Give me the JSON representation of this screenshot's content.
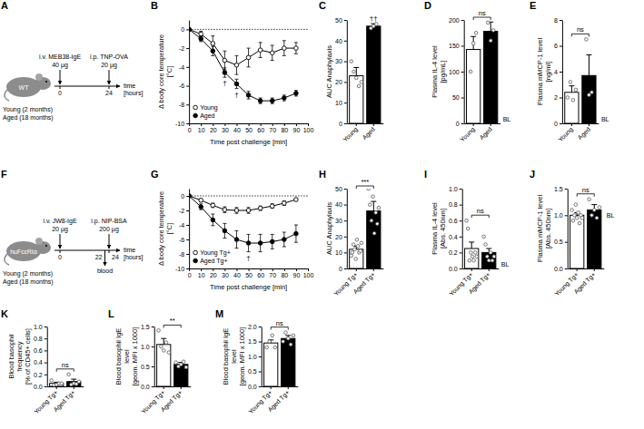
{
  "diagrams": [
    {
      "panel": "A",
      "mouse": "WT",
      "groups": [
        "Young (2 months)",
        "Aged (18 months)"
      ],
      "axis_label": "time [hours]",
      "events": [
        {
          "time": 0,
          "label": "i.v. MEB38-IgE",
          "dose": "40 µg",
          "position": "above"
        },
        {
          "time": 24,
          "label": "i.p. TNP-OVA",
          "dose": "20 µg",
          "position": "above"
        }
      ]
    },
    {
      "panel": "F",
      "mouse": "huFcεRIα",
      "groups": [
        "Young (2 months)",
        "Aged (18 months)"
      ],
      "axis_label": "time [hours]",
      "events": [
        {
          "time": 0,
          "label": "i.v. JW8-IgE",
          "dose": "20 µg",
          "position": "above"
        },
        {
          "time": 22,
          "label": "blood",
          "position": "below"
        },
        {
          "time": 24,
          "label": "i.p. NIP-BSA",
          "dose": "200 µg",
          "position": "above"
        }
      ]
    }
  ],
  "chart_data": [
    {
      "panel": "B",
      "type": "line",
      "x_label": "Time post challenge [min]",
      "y_label": "Δ body core temperature [°C]",
      "x": [
        0,
        10,
        20,
        30,
        40,
        50,
        60,
        70,
        80,
        90
      ],
      "xlim": [
        0,
        100
      ],
      "xticks": [
        0,
        10,
        20,
        30,
        40,
        50,
        60,
        70,
        80,
        90,
        100
      ],
      "ylim": [
        -10,
        1
      ],
      "yticks": [
        0,
        -2,
        -4,
        -6,
        -8,
        -10
      ],
      "baseline": 0,
      "legend": "bottom-left",
      "series": [
        {
          "name": "Young",
          "color": "#000000",
          "marker": "open-circle",
          "values": [
            0,
            -0.5,
            -1.5,
            -3.3,
            -3.8,
            -3.0,
            -2.2,
            -2.5,
            -2.0,
            -2.0
          ],
          "errors": [
            0,
            0.3,
            0.8,
            1.0,
            1.0,
            1.0,
            0.8,
            0.8,
            0.8,
            0.6
          ]
        },
        {
          "name": "Aged",
          "color": "#000000",
          "marker": "circle",
          "values": [
            0,
            -1.0,
            -2.3,
            -4.6,
            -5.8,
            -7.0,
            -7.6,
            -7.6,
            -7.3,
            -6.8
          ],
          "errors": [
            0,
            0.3,
            0.5,
            0.5,
            0.5,
            0.4,
            0.3,
            0.3,
            0.3,
            0.3
          ]
        }
      ],
      "annotations": [
        {
          "text": "†",
          "x": 30,
          "series": 1
        },
        {
          "text": "†",
          "x": 40,
          "series": 1
        }
      ]
    },
    {
      "panel": "C",
      "type": "bar",
      "y_label": "AUC Anaphylaxis",
      "categories": [
        "Young",
        "Aged"
      ],
      "values": [
        23,
        47
      ],
      "errors": [
        4,
        1.2
      ],
      "points": [
        [
          30,
          25,
          22,
          18,
          20
        ],
        [
          46,
          47,
          48
        ]
      ],
      "colors": [
        "#ffffff",
        "#000000"
      ],
      "ylim": [
        0,
        50
      ],
      "yticks": [
        0,
        10,
        20,
        30,
        40,
        50
      ],
      "annotations": [
        {
          "text": "††",
          "category": 1
        }
      ]
    },
    {
      "panel": "D",
      "type": "bar",
      "y_label": "Plasma IL-4 level [pg/mL]",
      "categories": [
        "Young",
        "Aged"
      ],
      "values": [
        143,
        178
      ],
      "errors": [
        25,
        18
      ],
      "points": [
        [
          100,
          155,
          175
        ],
        [
          195,
          160,
          180
        ]
      ],
      "colors": [
        "#ffffff",
        "#000000"
      ],
      "ylim": [
        0,
        200
      ],
      "yticks": [
        0,
        50,
        100,
        150,
        200
      ],
      "annotations": [
        {
          "text": "ns"
        },
        {
          "text": "BL",
          "y": 8
        }
      ]
    },
    {
      "panel": "E",
      "type": "bar",
      "y_label": "Plasma mMCP-1 level [ng/ml]",
      "categories": [
        "Young",
        "Aged"
      ],
      "values": [
        2.4,
        3.7
      ],
      "errors": [
        0.5,
        1.6
      ],
      "points": [
        [
          2.0,
          3.2,
          1.8,
          2.6
        ],
        [
          6.5,
          2.2,
          2.4
        ]
      ],
      "colors": [
        "#ffffff",
        "#000000"
      ],
      "ylim": [
        0,
        8
      ],
      "yticks": [
        0,
        2,
        4,
        6,
        8
      ],
      "annotations": [
        {
          "text": "ns"
        },
        {
          "text": "BL",
          "y": 0.3
        }
      ]
    },
    {
      "panel": "G",
      "type": "line",
      "x_label": "Time post challenge [min]",
      "y_label": "Δ body core temperature [°C]",
      "x": [
        0,
        10,
        20,
        30,
        40,
        50,
        60,
        70,
        80,
        90
      ],
      "xlim": [
        0,
        100
      ],
      "xticks": [
        0,
        10,
        20,
        30,
        40,
        50,
        60,
        70,
        80,
        90,
        100
      ],
      "ylim": [
        -10,
        1
      ],
      "yticks": [
        0,
        -2,
        -4,
        -6,
        -8,
        -10
      ],
      "baseline": 0,
      "legend": "bottom-left",
      "series": [
        {
          "name": "Young Tg+",
          "color": "#000000",
          "marker": "open-circle",
          "values": [
            0,
            -0.6,
            -1.3,
            -1.9,
            -2.0,
            -2.0,
            -1.7,
            -1.4,
            -1.0,
            -0.5
          ],
          "errors": [
            0,
            0.2,
            0.3,
            0.4,
            0.4,
            0.4,
            0.3,
            0.3,
            0.3,
            0.2
          ]
        },
        {
          "name": "Aged Tg+",
          "color": "#000000",
          "marker": "circle",
          "values": [
            0,
            -1.5,
            -3.3,
            -4.8,
            -6.0,
            -6.5,
            -6.5,
            -6.3,
            -6.0,
            -5.2
          ],
          "errors": [
            0,
            0.4,
            0.8,
            1.0,
            1.2,
            1.2,
            1.2,
            1.0,
            1.0,
            1.2
          ]
        }
      ],
      "annotations": [
        {
          "text": "†",
          "x": 50,
          "series": 1
        }
      ]
    },
    {
      "panel": "H",
      "type": "bar",
      "y_label": "AUC Anaphylaxis",
      "categories": [
        "Young Tg+",
        "Aged Tg+"
      ],
      "values": [
        12,
        36
      ],
      "errors": [
        2,
        6
      ],
      "points": [
        [
          8,
          10,
          15,
          12,
          6,
          18,
          14,
          10,
          11,
          16
        ],
        [
          50,
          40,
          30,
          45,
          22,
          35,
          28,
          38
        ]
      ],
      "colors": [
        "#ffffff",
        "#000000"
      ],
      "ylim": [
        0,
        50
      ],
      "yticks": [
        0,
        10,
        20,
        30,
        40,
        50
      ],
      "annotations": [
        {
          "text": "***"
        }
      ]
    },
    {
      "panel": "I",
      "type": "bar",
      "y_label": "Plasma IL-4 level [Abs. 450nm]",
      "categories": [
        "Young Tg+",
        "Aged Tg+"
      ],
      "values": [
        0.25,
        0.2
      ],
      "errors": [
        0.08,
        0.05
      ],
      "points": [
        [
          0.6,
          0.5,
          0.1,
          0.2,
          0.15,
          0.1,
          0.2,
          0.15
        ],
        [
          0.4,
          0.3,
          0.15,
          0.1,
          0.2,
          0.1,
          0.15
        ]
      ],
      "colors": [
        "#ffffff",
        "#000000"
      ],
      "ylim": [
        0,
        1
      ],
      "yticks": [
        {
          "value": 0,
          "label": "0.0"
        },
        0.2,
        0.4,
        0.6,
        0.8,
        {
          "value": 1,
          "label": "1.0"
        }
      ],
      "annotations": [
        {
          "text": "ns"
        },
        {
          "text": "BL",
          "y": 0.05
        }
      ]
    },
    {
      "panel": "J",
      "type": "bar",
      "y_label": "Plasma mMCP-1 level [Abs. 450nm]",
      "categories": [
        "Young Tg+",
        "Aged Tg+"
      ],
      "values": [
        1.0,
        1.1
      ],
      "errors": [
        0.05,
        0.1
      ],
      "points": [
        [
          1.1,
          0.9,
          1.0,
          1.2,
          0.95,
          1.05,
          0.85,
          1.0,
          0.95
        ],
        [
          1.3,
          1.0,
          1.1,
          0.95,
          1.15
        ]
      ],
      "colors": [
        "#ffffff",
        "#000000"
      ],
      "ylim": [
        0,
        1.5
      ],
      "yticks": [
        {
          "value": 0,
          "label": "0.0"
        },
        0.5,
        {
          "value": 1,
          "label": "1.0"
        },
        1.5
      ],
      "annotations": [
        {
          "text": "ns"
        },
        {
          "text": "BL",
          "y": 1.0
        }
      ]
    },
    {
      "panel": "K",
      "type": "bar",
      "y_label": "Blood basophil frequency [% of CD45+ cells]",
      "categories": [
        "Young Tg+",
        "Aged Tg+"
      ],
      "values": [
        0.05,
        0.08
      ],
      "errors": [
        0.02,
        0.04
      ],
      "points": [
        [
          0.1,
          0.02,
          0.03,
          0.05,
          0.05
        ],
        [
          0.2,
          0.03,
          0.05,
          0.04,
          0.08
        ]
      ],
      "colors": [
        "#ffffff",
        "#000000"
      ],
      "ylim": [
        0,
        1
      ],
      "yticks": [
        {
          "value": 0,
          "label": "0.0"
        },
        0.2,
        0.4,
        0.6,
        0.8,
        {
          "value": 1,
          "label": "1.0"
        }
      ],
      "annotations": [
        {
          "text": "ns"
        }
      ]
    },
    {
      "panel": "L",
      "type": "bar",
      "y_label": "Blood basophil IgE level [geom. MFI x 1000]",
      "categories": [
        "Young Tg+",
        "Aged Tg+"
      ],
      "values": [
        1.05,
        0.55
      ],
      "errors": [
        0.15,
        0.05
      ],
      "points": [
        [
          1.4,
          1.0,
          0.9,
          1.1,
          0.85
        ],
        [
          0.6,
          0.5,
          0.55,
          0.62,
          0.48
        ]
      ],
      "colors": [
        "#ffffff",
        "#000000"
      ],
      "ylim": [
        0,
        1.5
      ],
      "yticks": [
        {
          "value": 0,
          "label": "0.0"
        },
        0.5,
        {
          "value": 1,
          "label": "1.0"
        },
        1.5
      ],
      "annotations": [
        {
          "text": "**"
        }
      ]
    },
    {
      "panel": "M",
      "type": "bar",
      "y_label": "Blood basophil IgE level [geom. MFI x 1000]",
      "categories": [
        "Young Tg+",
        "Aged Tg+"
      ],
      "values": [
        1.45,
        1.6
      ],
      "errors": [
        0.1,
        0.1
      ],
      "points": [
        [
          1.3,
          1.5,
          1.7,
          1.3
        ],
        [
          1.5,
          1.8,
          1.6,
          1.4,
          1.7
        ]
      ],
      "colors": [
        "#ffffff",
        "#000000"
      ],
      "ylim": [
        0,
        2
      ],
      "yticks": [
        {
          "value": 0,
          "label": "0.0"
        },
        0.5,
        {
          "value": 1,
          "label": "1.0"
        },
        1.5,
        {
          "value": 2,
          "label": "2.0"
        }
      ],
      "annotations": [
        {
          "text": "ns"
        }
      ]
    }
  ]
}
